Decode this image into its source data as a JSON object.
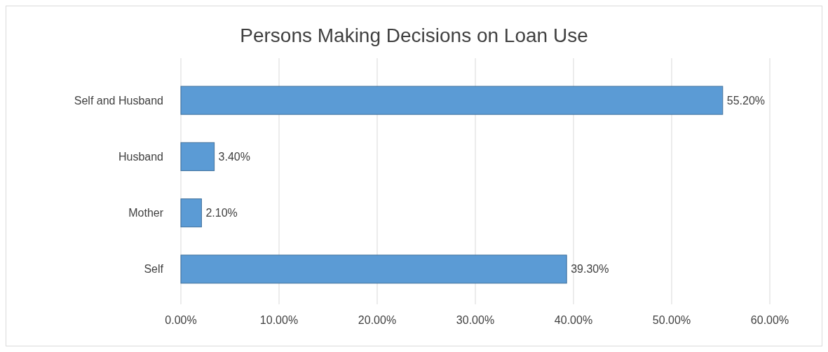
{
  "chart_data": {
    "type": "bar",
    "orientation": "horizontal",
    "title": "Persons Making Decisions on Loan Use",
    "categories": [
      "Self and Husband",
      "Husband",
      "Mother",
      "Self"
    ],
    "values": [
      55.2,
      3.4,
      2.1,
      39.3
    ],
    "value_labels": [
      "55.20%",
      "3.40%",
      "2.10%",
      "39.30%"
    ],
    "color": "#5b9bd5",
    "xlim": [
      0,
      60
    ],
    "xticks": [
      {
        "value": 0,
        "label": "0.00%"
      },
      {
        "value": 10,
        "label": "10.00%"
      },
      {
        "value": 20,
        "label": "20.00%"
      },
      {
        "value": 30,
        "label": "30.00%"
      },
      {
        "value": 40,
        "label": "40.00%"
      },
      {
        "value": 50,
        "label": "50.00%"
      },
      {
        "value": 60,
        "label": "60.00%"
      }
    ],
    "grid": "x"
  }
}
